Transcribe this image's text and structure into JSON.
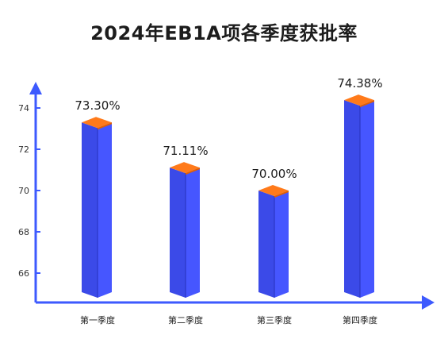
{
  "chart_data": {
    "type": "bar",
    "title": "2024年EB1A项各季度获批率",
    "xlabel": "",
    "ylabel": "",
    "categories": [
      "第一季度",
      "第二季度",
      "第三季度",
      "第四季度"
    ],
    "values": [
      73.3,
      71.11,
      70.0,
      74.38
    ],
    "data_labels": [
      "73.30%",
      "71.11%",
      "70.00%",
      "74.38%"
    ],
    "yticks": [
      66,
      68,
      70,
      72,
      74
    ],
    "ylim": [
      64.8,
      76
    ],
    "grid": false,
    "legend": "none",
    "colors": {
      "axis": "#3d5afe",
      "bar_front": "#3f51f5",
      "bar_side": "#2a35b8",
      "bar_top": "#ff7a1a"
    }
  }
}
